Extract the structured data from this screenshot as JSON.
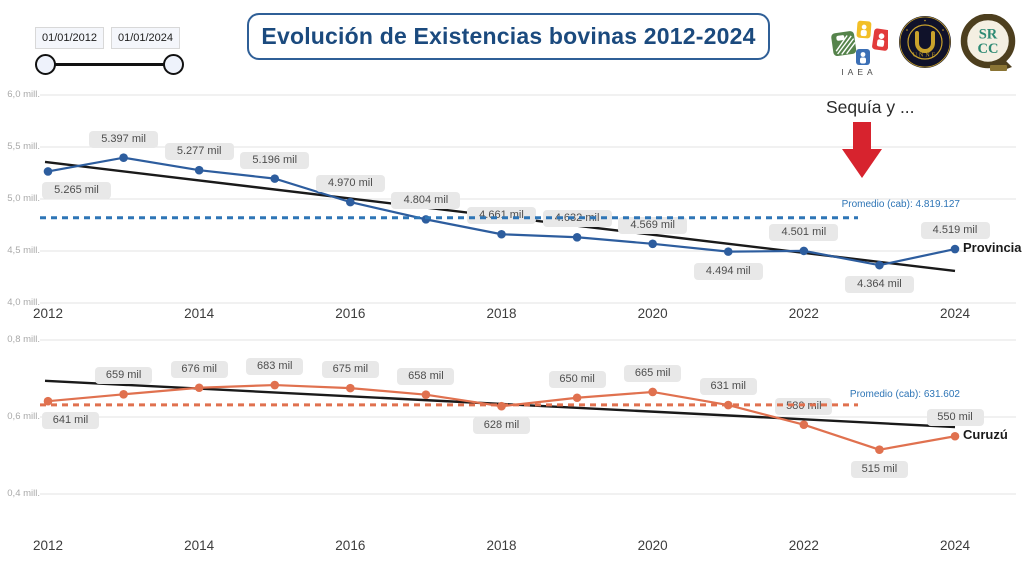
{
  "title": "Evolución de Existencias bovinas 2012-2024",
  "slicer": {
    "start_date": "01/01/2012",
    "end_date": "01/01/2024"
  },
  "annotation": {
    "text": "Sequía y ..."
  },
  "logos": {
    "iaea_label": "IAEA",
    "unne_label": "UNNE",
    "srcc_line1": "SR",
    "srcc_line2": "CC"
  },
  "colors": {
    "title_blue": "#1b4a7e",
    "provincia_blue": "#2d5d9e",
    "curuzu_orange": "#e0714f",
    "average_blue": "#2e75b6",
    "trend_black": "#1a1a1a",
    "arrow_red": "#d7232e",
    "label_box_bg": "#e8e8e8"
  },
  "chart_data": [
    {
      "type": "line",
      "name": "Provincia",
      "series_label": "Provincia",
      "x": [
        2012,
        2013,
        2014,
        2015,
        2016,
        2017,
        2018,
        2019,
        2020,
        2021,
        2022,
        2023,
        2024
      ],
      "values_mil": [
        5265,
        5397,
        5277,
        5196,
        4970,
        4804,
        4661,
        4632,
        4569,
        4494,
        4501,
        4364,
        4519
      ],
      "point_labels": [
        "5.265 mil",
        "5.397 mil",
        "5.277 mil",
        "5.196 mil",
        "4.970 mil",
        "4.804 mil",
        "4.661 mil",
        "4.632 mil",
        "4.569 mil",
        "4.494 mil",
        "4.501 mil",
        "4.364 mil",
        "4.519 mil"
      ],
      "label_side": [
        "below",
        "above",
        "above",
        "above",
        "above",
        "above",
        "above",
        "above",
        "above",
        "below",
        "above",
        "below",
        "above"
      ],
      "average": {
        "label": "Promedio (cab): 4.819.127",
        "value_mil": 4819.127
      },
      "trend_mil": [
        5356,
        4308
      ],
      "ylim_mil": [
        4000,
        6000
      ],
      "yticks": [
        {
          "value": 6000,
          "label": "6,0 mill."
        },
        {
          "value": 5500,
          "label": "5,5 mill."
        },
        {
          "value": 5000,
          "label": "5,0 mill."
        },
        {
          "value": 4500,
          "label": "4,5 mill."
        },
        {
          "value": 4000,
          "label": "4,0 mill."
        }
      ],
      "xticks": [
        2012,
        2014,
        2016,
        2018,
        2020,
        2022,
        2024
      ],
      "color": "#2d5d9e",
      "avg_color": "#2e75b6",
      "legend_position": "right-end",
      "grid": true
    },
    {
      "type": "line",
      "name": "Curuzú",
      "series_label": "Curuzú",
      "x": [
        2012,
        2013,
        2014,
        2015,
        2016,
        2017,
        2018,
        2019,
        2020,
        2021,
        2022,
        2023,
        2024
      ],
      "values_mil": [
        641,
        659,
        676,
        683,
        675,
        658,
        628,
        650,
        665,
        631,
        580,
        515,
        550
      ],
      "point_labels": [
        "641 mil",
        "659 mil",
        "676 mil",
        "683 mil",
        "675 mil",
        "658 mil",
        "628 mil",
        "650 mil",
        "665 mil",
        "631 mil",
        "580 mil",
        "515 mil",
        "550 mil"
      ],
      "label_side": [
        "below",
        "above",
        "above",
        "above",
        "above",
        "above",
        "below",
        "above",
        "above",
        "above",
        "above",
        "below",
        "above"
      ],
      "average": {
        "label": "Promedio (cab): 631.602",
        "value_mil": 631.602
      },
      "trend_mil": [
        694,
        574
      ],
      "ylim_mil": [
        400,
        800
      ],
      "yticks": [
        {
          "value": 800,
          "label": "0,8 mill."
        },
        {
          "value": 600,
          "label": "0,6 mill."
        },
        {
          "value": 400,
          "label": "0,4 mill."
        }
      ],
      "xticks": [
        2012,
        2014,
        2016,
        2018,
        2020,
        2022,
        2024
      ],
      "color": "#e0714f",
      "avg_color": "#e0714f",
      "legend_position": "right-end",
      "grid": true
    }
  ]
}
